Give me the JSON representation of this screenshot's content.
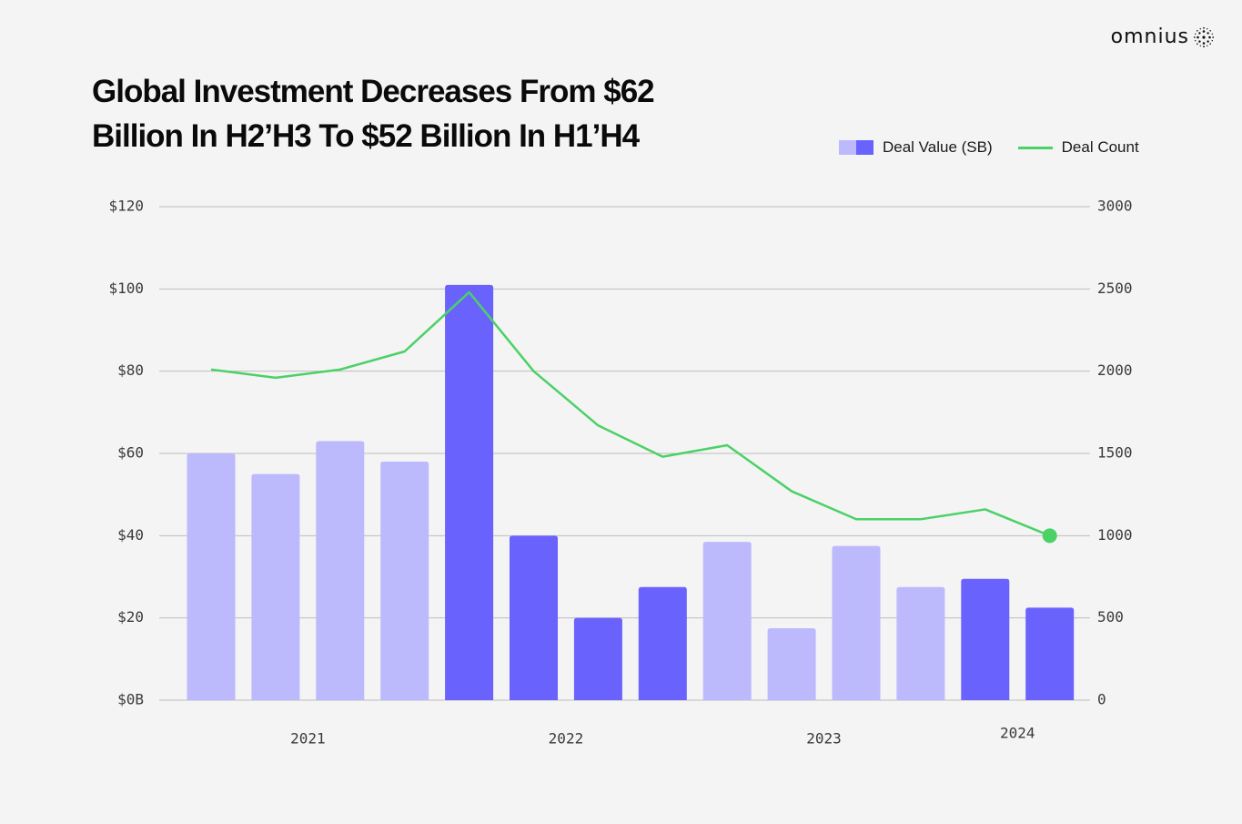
{
  "brand": {
    "name": "omnius",
    "icon": "dotted-sphere-icon"
  },
  "chart_data": {
    "type": "bar",
    "title": "Global Investment Decreases From $62 Billion In H2’H3 To $52 Billion In H1’H4",
    "legend": {
      "placement": "top-right",
      "entries": [
        "Deal Value (SB)",
        "Deal Count"
      ]
    },
    "grid": true,
    "colors": {
      "bar_light": "#bdb9fd",
      "bar_dark": "#6962fd",
      "line": "#4bd166",
      "grid": "#bdbdbd"
    },
    "y_left": {
      "range": [
        0,
        120
      ],
      "ticks": [
        "$0B",
        "$20",
        "$40",
        "$60",
        "$80",
        "$100",
        "$120"
      ],
      "tick_values": [
        0,
        20,
        40,
        60,
        80,
        100,
        120
      ]
    },
    "y_right": {
      "range": [
        0,
        3000
      ],
      "ticks": [
        "0",
        "500",
        "1000",
        "1500",
        "2000",
        "2500",
        "3000"
      ],
      "tick_values": [
        0,
        500,
        1000,
        1500,
        2000,
        2500,
        3000
      ]
    },
    "x_labels": [
      {
        "label": "2021",
        "between": [
          1,
          2
        ]
      },
      {
        "label": "2022",
        "between": [
          5,
          6
        ]
      },
      {
        "label": "2023",
        "between": [
          9,
          10
        ]
      },
      {
        "label": "2024",
        "between": [
          12,
          13
        ]
      }
    ],
    "series": [
      {
        "name": "Deal Value (SB)",
        "type": "bar",
        "axis": "left",
        "values": [
          60,
          55,
          63,
          58,
          101,
          40,
          20,
          27.5,
          38.5,
          17.5,
          37.5,
          27.5,
          29.5,
          22.5
        ],
        "shade": [
          "light",
          "light",
          "light",
          "light",
          "dark",
          "dark",
          "dark",
          "dark",
          "light",
          "light",
          "light",
          "light",
          "dark",
          "dark"
        ]
      },
      {
        "name": "Deal Count",
        "type": "line",
        "axis": "right",
        "values": [
          2010,
          1960,
          2010,
          2120,
          2480,
          2000,
          1670,
          1480,
          1550,
          1270,
          1100,
          1100,
          1160,
          1000
        ]
      }
    ]
  }
}
